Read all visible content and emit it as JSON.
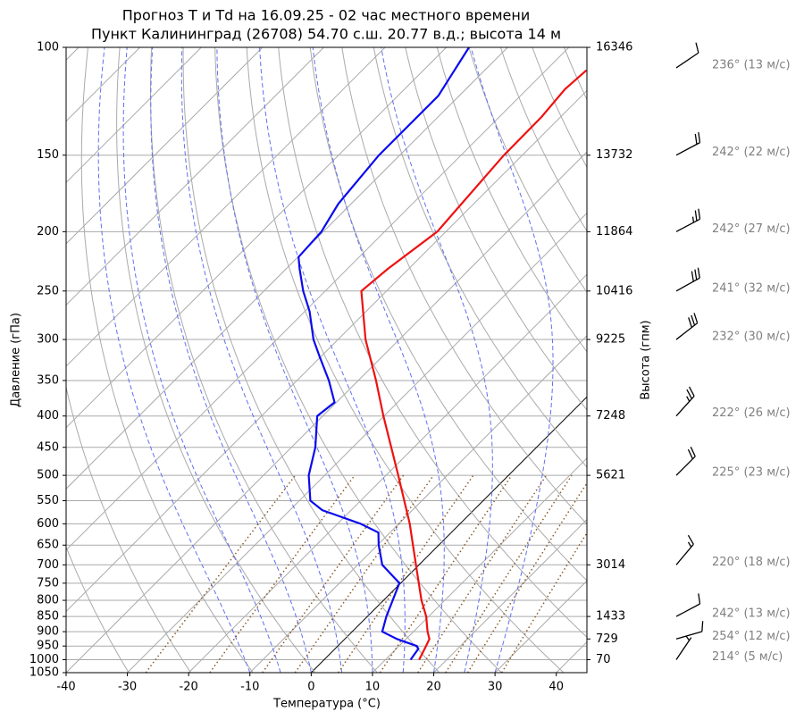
{
  "chart_data": {
    "type": "skewt",
    "title": "Прогноз T и Td на 16.09.25 - 02 час местного времени",
    "subtitle": "Пункт Калининград (26708) 54.70 с.ш. 20.77 в.д.; высота 14 м",
    "xlabel": "Температура (°C)",
    "ylabel": "Давление (гПа)",
    "y2label": "Высота (гпм)",
    "xlim": [
      -40,
      45
    ],
    "xticks": [
      -40,
      -30,
      -20,
      -10,
      0,
      10,
      20,
      30,
      40
    ],
    "ylim": [
      1050,
      100
    ],
    "log_y": true,
    "grid": true,
    "yticks": [
      100,
      150,
      200,
      250,
      300,
      350,
      400,
      450,
      500,
      550,
      600,
      650,
      700,
      750,
      800,
      850,
      900,
      950,
      1000,
      1050
    ],
    "series": [
      {
        "color": "#ee1111",
        "pressure": [
          1000,
          950,
          925,
          900,
          850,
          800,
          700,
          600,
          500,
          400,
          350,
          300,
          250,
          230,
          200,
          150,
          130,
          117,
          109
        ],
        "temperature": [
          15.5,
          14.4,
          13.8,
          12.3,
          9.6,
          6.2,
          -0.5,
          -8.2,
          -18,
          -30.1,
          -37.1,
          -45.5,
          -54.1,
          -53.4,
          -51.4,
          -53,
          -53.1,
          -53.8,
          -53.4
        ]
      },
      {
        "color": "#0b0bee",
        "pressure": [
          1000,
          960,
          950,
          925,
          900,
          850,
          800,
          750,
          700,
          650,
          620,
          600,
          570,
          550,
          500,
          450,
          400,
          380,
          350,
          320,
          300,
          270,
          250,
          230,
          220,
          200,
          180,
          150,
          120,
          100
        ],
        "temperature": [
          14.1,
          13.6,
          12.9,
          8.5,
          4.9,
          3.1,
          1.5,
          -0.2,
          -6,
          -9.8,
          -11.9,
          -16.2,
          -24.7,
          -28.2,
          -32.6,
          -36.1,
          -40.9,
          -40.3,
          -44.8,
          -50.2,
          -54,
          -59.2,
          -63.6,
          -67.8,
          -69.9,
          -70.3,
          -72.1,
          -73.4,
          -73.4,
          -76.3
        ]
      }
    ],
    "heights": {
      "pressure": [
        100,
        150,
        200,
        250,
        300,
        400,
        500,
        700,
        850,
        925,
        1000
      ],
      "values": [
        16346,
        13732,
        11864,
        10416,
        9225,
        7248,
        5621,
        3014,
        1433,
        729,
        70
      ]
    },
    "wind": {
      "pressure": [
        108,
        150,
        200,
        250,
        300,
        400,
        500,
        700,
        850,
        925,
        1000
      ],
      "direction": [
        236,
        242,
        242,
        241,
        232,
        222,
        225,
        220,
        242,
        254,
        214
      ],
      "speed": [
        13,
        22,
        27,
        32,
        30,
        26,
        23,
        18,
        13,
        12,
        5
      ],
      "labels": [
        "236° (13 м/с)",
        "242° (22 м/с)",
        "242° (27 м/с)",
        "241° (32 м/с)",
        "232° (30 м/с)",
        "222° (26 м/с)",
        "225° (23 м/с)",
        "220° (18 м/с)",
        "242° (13 м/с)",
        "254° (12 м/с)",
        "214° (5 м/с)"
      ]
    }
  }
}
